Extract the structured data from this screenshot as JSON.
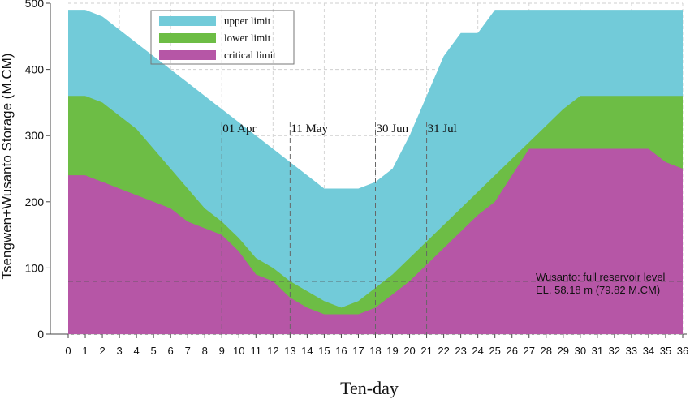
{
  "chart_data": {
    "type": "area",
    "xlabel": "Ten-day",
    "ylabel": "Tsengwen+Wusanto Storage (M.CM)",
    "xlim": [
      0,
      36
    ],
    "ylim": [
      0,
      500
    ],
    "x_ticks": [
      0,
      1,
      2,
      3,
      4,
      5,
      6,
      7,
      8,
      9,
      10,
      11,
      12,
      13,
      14,
      15,
      16,
      17,
      18,
      19,
      20,
      21,
      22,
      23,
      24,
      25,
      26,
      27,
      28,
      29,
      30,
      31,
      32,
      33,
      34,
      35,
      36
    ],
    "y_ticks": [
      0,
      100,
      200,
      300,
      400,
      500
    ],
    "grid": true,
    "legend_position": "top-left",
    "x": [
      0,
      1,
      2,
      3,
      4,
      5,
      6,
      7,
      8,
      9,
      10,
      11,
      12,
      13,
      14,
      15,
      16,
      17,
      18,
      19,
      20,
      21,
      22,
      23,
      24,
      25,
      26,
      27,
      28,
      29,
      30,
      31,
      32,
      33,
      34,
      35,
      36
    ],
    "series": [
      {
        "name": "upper limit",
        "color": "#72CBD9",
        "values": [
          490,
          490,
          480,
          460,
          440,
          420,
          400,
          380,
          360,
          340,
          320,
          300,
          280,
          260,
          240,
          220,
          220,
          220,
          230,
          250,
          300,
          360,
          420,
          455,
          455,
          490,
          490,
          490,
          490,
          490,
          490,
          490,
          490,
          490,
          490,
          490,
          490
        ]
      },
      {
        "name": "lower limit",
        "color": "#6DBD45",
        "values": [
          360,
          360,
          350,
          330,
          310,
          280,
          250,
          220,
          190,
          170,
          145,
          115,
          100,
          80,
          65,
          50,
          40,
          50,
          70,
          90,
          115,
          140,
          165,
          190,
          215,
          240,
          265,
          290,
          315,
          340,
          360,
          360,
          360,
          360,
          360,
          360,
          360
        ]
      },
      {
        "name": "critical limit",
        "color": "#B656A6",
        "values": [
          240,
          240,
          230,
          220,
          210,
          200,
          190,
          170,
          160,
          150,
          125,
          90,
          80,
          55,
          40,
          30,
          30,
          30,
          40,
          60,
          80,
          105,
          130,
          155,
          180,
          200,
          240,
          280,
          280,
          280,
          280,
          280,
          280,
          280,
          280,
          260,
          250
        ]
      }
    ],
    "vertical_markers": [
      {
        "x": 9,
        "label": "01 Apr"
      },
      {
        "x": 13,
        "label": "11 May"
      },
      {
        "x": 18,
        "label": "30 Jun"
      },
      {
        "x": 21,
        "label": "31 Jul"
      }
    ],
    "reference_line": {
      "y": 79.82,
      "label_line1": "Wusanto: full reservoir level",
      "label_line2": "EL. 58.18 m (79.82 M.CM)"
    }
  }
}
